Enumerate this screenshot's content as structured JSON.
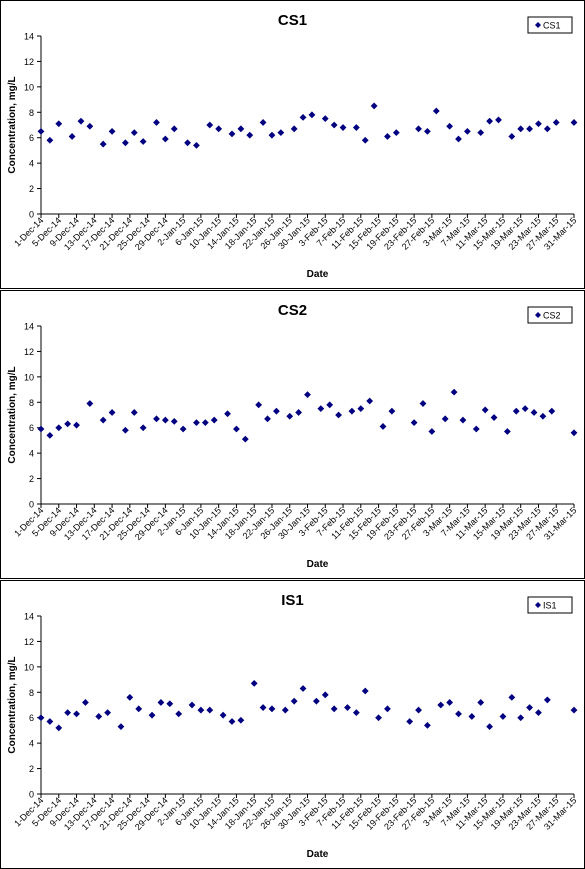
{
  "chart_data": [
    {
      "type": "scatter",
      "title": "CS1",
      "xlabel": "Date",
      "ylabel": "Concentration, mg/L",
      "ylim": [
        0,
        14
      ],
      "yticks": [
        "0",
        "2",
        "4",
        "6",
        "8",
        "10",
        "12",
        "14"
      ],
      "xlim": [
        "2014-12-01",
        "2015-03-31"
      ],
      "xtick_labels": [
        "1-Dec-14",
        "5-Dec-14",
        "9-Dec-14",
        "13-Dec-14",
        "17-Dec-14",
        "21-Dec-14",
        "25-Dec-14",
        "29-Dec-14",
        "2-Jan-15",
        "6-Jan-15",
        "10-Jan-15",
        "14-Jan-15",
        "18-Jan-15",
        "22-Jan-15",
        "26-Jan-15",
        "30-Jan-15",
        "3-Feb-15",
        "7-Feb-15",
        "11-Feb-15",
        "15-Feb-15",
        "19-Feb-15",
        "23-Feb-15",
        "27-Feb-15",
        "3-Mar-15",
        "7-Mar-15",
        "11-Mar-15",
        "15-Mar-15",
        "19-Mar-15",
        "23-Mar-15",
        "27-Mar-15",
        "31-Mar-15"
      ],
      "legend": "top-right",
      "color": "#000080",
      "series": [
        {
          "name": "CS1",
          "x": [
            "2014-12-01",
            "2014-12-03",
            "2014-12-05",
            "2014-12-08",
            "2014-12-10",
            "2014-12-12",
            "2014-12-15",
            "2014-12-17",
            "2014-12-20",
            "2014-12-22",
            "2014-12-24",
            "2014-12-27",
            "2014-12-29",
            "2014-12-31",
            "2015-01-03",
            "2015-01-05",
            "2015-01-08",
            "2015-01-10",
            "2015-01-13",
            "2015-01-15",
            "2015-01-17",
            "2015-01-20",
            "2015-01-22",
            "2015-01-24",
            "2015-01-27",
            "2015-01-29",
            "2015-01-31",
            "2015-02-03",
            "2015-02-05",
            "2015-02-07",
            "2015-02-10",
            "2015-02-12",
            "2015-02-14",
            "2015-02-17",
            "2015-02-19",
            "2015-02-24",
            "2015-02-26",
            "2015-02-28",
            "2015-03-03",
            "2015-03-05",
            "2015-03-07",
            "2015-03-10",
            "2015-03-12",
            "2015-03-14",
            "2015-03-17",
            "2015-03-19",
            "2015-03-21",
            "2015-03-23",
            "2015-03-25",
            "2015-03-27",
            "2015-03-31"
          ],
          "y": [
            6.5,
            5.8,
            7.1,
            6.1,
            7.3,
            6.9,
            5.5,
            6.5,
            5.6,
            6.4,
            5.7,
            7.2,
            5.9,
            6.7,
            5.6,
            5.4,
            7.0,
            6.7,
            6.3,
            6.7,
            6.2,
            7.2,
            6.2,
            6.4,
            6.7,
            7.6,
            7.8,
            7.5,
            7.0,
            6.8,
            6.8,
            5.8,
            8.5,
            6.1,
            6.4,
            6.7,
            6.5,
            8.1,
            6.9,
            5.9,
            6.5,
            6.4,
            7.3,
            7.4,
            6.1,
            6.7,
            6.7,
            7.1,
            6.7,
            7.2,
            7.2
          ]
        }
      ]
    },
    {
      "type": "scatter",
      "title": "CS2",
      "xlabel": "Date",
      "ylabel": "Concentration, mg/L",
      "ylim": [
        0,
        14
      ],
      "yticks": [
        "0",
        "2",
        "4",
        "6",
        "8",
        "10",
        "12",
        "14"
      ],
      "xlim": [
        "2014-12-01",
        "2015-03-31"
      ],
      "xtick_labels": [
        "1-Dec-14",
        "5-Dec-14",
        "9-Dec-14",
        "13-Dec-14",
        "17-Dec-14",
        "21-Dec-14",
        "25-Dec-14",
        "29-Dec-14",
        "2-Jan-15",
        "6-Jan-15",
        "10-Jan-15",
        "14-Jan-15",
        "18-Jan-15",
        "22-Jan-15",
        "26-Jan-15",
        "30-Jan-15",
        "3-Feb-15",
        "7-Feb-15",
        "11-Feb-15",
        "15-Feb-15",
        "19-Feb-15",
        "23-Feb-15",
        "27-Feb-15",
        "3-Mar-15",
        "7-Mar-15",
        "11-Mar-15",
        "15-Mar-15",
        "19-Mar-15",
        "23-Mar-15",
        "27-Mar-15",
        "31-Mar-15"
      ],
      "legend": "top-right",
      "color": "#000080",
      "series": [
        {
          "name": "CS2",
          "x": [
            "2014-12-01",
            "2014-12-03",
            "2014-12-05",
            "2014-12-07",
            "2014-12-09",
            "2014-12-12",
            "2014-12-15",
            "2014-12-17",
            "2014-12-20",
            "2014-12-22",
            "2014-12-24",
            "2014-12-27",
            "2014-12-29",
            "2014-12-31",
            "2015-01-02",
            "2015-01-05",
            "2015-01-07",
            "2015-01-09",
            "2015-01-12",
            "2015-01-14",
            "2015-01-16",
            "2015-01-19",
            "2015-01-21",
            "2015-01-23",
            "2015-01-26",
            "2015-01-28",
            "2015-01-30",
            "2015-02-02",
            "2015-02-04",
            "2015-02-06",
            "2015-02-09",
            "2015-02-11",
            "2015-02-13",
            "2015-02-16",
            "2015-02-18",
            "2015-02-23",
            "2015-02-25",
            "2015-02-27",
            "2015-03-02",
            "2015-03-04",
            "2015-03-06",
            "2015-03-09",
            "2015-03-11",
            "2015-03-13",
            "2015-03-16",
            "2015-03-18",
            "2015-03-20",
            "2015-03-22",
            "2015-03-24",
            "2015-03-26",
            "2015-03-31"
          ],
          "y": [
            5.9,
            5.4,
            6.0,
            6.3,
            6.2,
            7.9,
            6.6,
            7.2,
            5.8,
            7.2,
            6.0,
            6.7,
            6.6,
            6.5,
            5.9,
            6.4,
            6.4,
            6.6,
            7.1,
            5.9,
            5.1,
            7.8,
            6.7,
            7.3,
            6.9,
            7.2,
            8.6,
            7.5,
            7.8,
            7.0,
            7.3,
            7.5,
            8.1,
            6.1,
            7.3,
            6.4,
            7.9,
            5.7,
            6.7,
            8.8,
            6.6,
            5.9,
            7.4,
            6.8,
            5.7,
            7.3,
            7.5,
            7.2,
            6.9,
            7.3,
            5.6
          ]
        }
      ]
    },
    {
      "type": "scatter",
      "title": "IS1",
      "xlabel": "Date",
      "ylabel": "Concentration, mg/L",
      "ylim": [
        0,
        14
      ],
      "yticks": [
        "0",
        "2",
        "4",
        "6",
        "8",
        "10",
        "12",
        "14"
      ],
      "xlim": [
        "2014-12-01",
        "2015-03-31"
      ],
      "xtick_labels": [
        "1-Dec-14",
        "5-Dec-14",
        "9-Dec-14",
        "13-Dec-14",
        "17-Dec-14",
        "21-Dec-14",
        "25-Dec-14",
        "29-Dec-14",
        "2-Jan-15",
        "6-Jan-15",
        "10-Jan-15",
        "14-Jan-15",
        "18-Jan-15",
        "22-Jan-15",
        "26-Jan-15",
        "30-Jan-15",
        "3-Feb-15",
        "7-Feb-15",
        "11-Feb-15",
        "15-Feb-15",
        "19-Feb-15",
        "23-Feb-15",
        "27-Feb-15",
        "3-Mar-15",
        "7-Mar-15",
        "11-Mar-15",
        "15-Mar-15",
        "19-Mar-15",
        "23-Mar-15",
        "27-Mar-15",
        "31-Mar-15"
      ],
      "legend": "top-right",
      "color": "#000080",
      "series": [
        {
          "name": "IS1",
          "x": [
            "2014-12-01",
            "2014-12-03",
            "2014-12-05",
            "2014-12-07",
            "2014-12-09",
            "2014-12-11",
            "2014-12-14",
            "2014-12-16",
            "2014-12-19",
            "2014-12-21",
            "2014-12-23",
            "2014-12-26",
            "2014-12-28",
            "2014-12-30",
            "2015-01-01",
            "2015-01-04",
            "2015-01-06",
            "2015-01-08",
            "2015-01-11",
            "2015-01-13",
            "2015-01-15",
            "2015-01-18",
            "2015-01-20",
            "2015-01-22",
            "2015-01-25",
            "2015-01-27",
            "2015-01-29",
            "2015-02-01",
            "2015-02-03",
            "2015-02-05",
            "2015-02-08",
            "2015-02-10",
            "2015-02-12",
            "2015-02-15",
            "2015-02-17",
            "2015-02-22",
            "2015-02-24",
            "2015-02-26",
            "2015-03-01",
            "2015-03-03",
            "2015-03-05",
            "2015-03-08",
            "2015-03-10",
            "2015-03-12",
            "2015-03-15",
            "2015-03-17",
            "2015-03-19",
            "2015-03-21",
            "2015-03-23",
            "2015-03-25",
            "2015-03-31"
          ],
          "y": [
            6.0,
            5.7,
            5.2,
            6.4,
            6.3,
            7.2,
            6.1,
            6.4,
            5.3,
            7.6,
            6.7,
            6.2,
            7.2,
            7.1,
            6.3,
            7.0,
            6.6,
            6.6,
            6.2,
            5.7,
            5.8,
            8.7,
            6.8,
            6.7,
            6.6,
            7.3,
            8.3,
            7.3,
            7.8,
            6.7,
            6.8,
            6.4,
            8.1,
            6.0,
            6.7,
            5.7,
            6.6,
            5.4,
            7.0,
            7.2,
            6.3,
            6.1,
            7.2,
            5.3,
            6.1,
            7.6,
            6.0,
            6.8,
            6.4,
            7.4,
            6.6
          ]
        }
      ]
    }
  ]
}
